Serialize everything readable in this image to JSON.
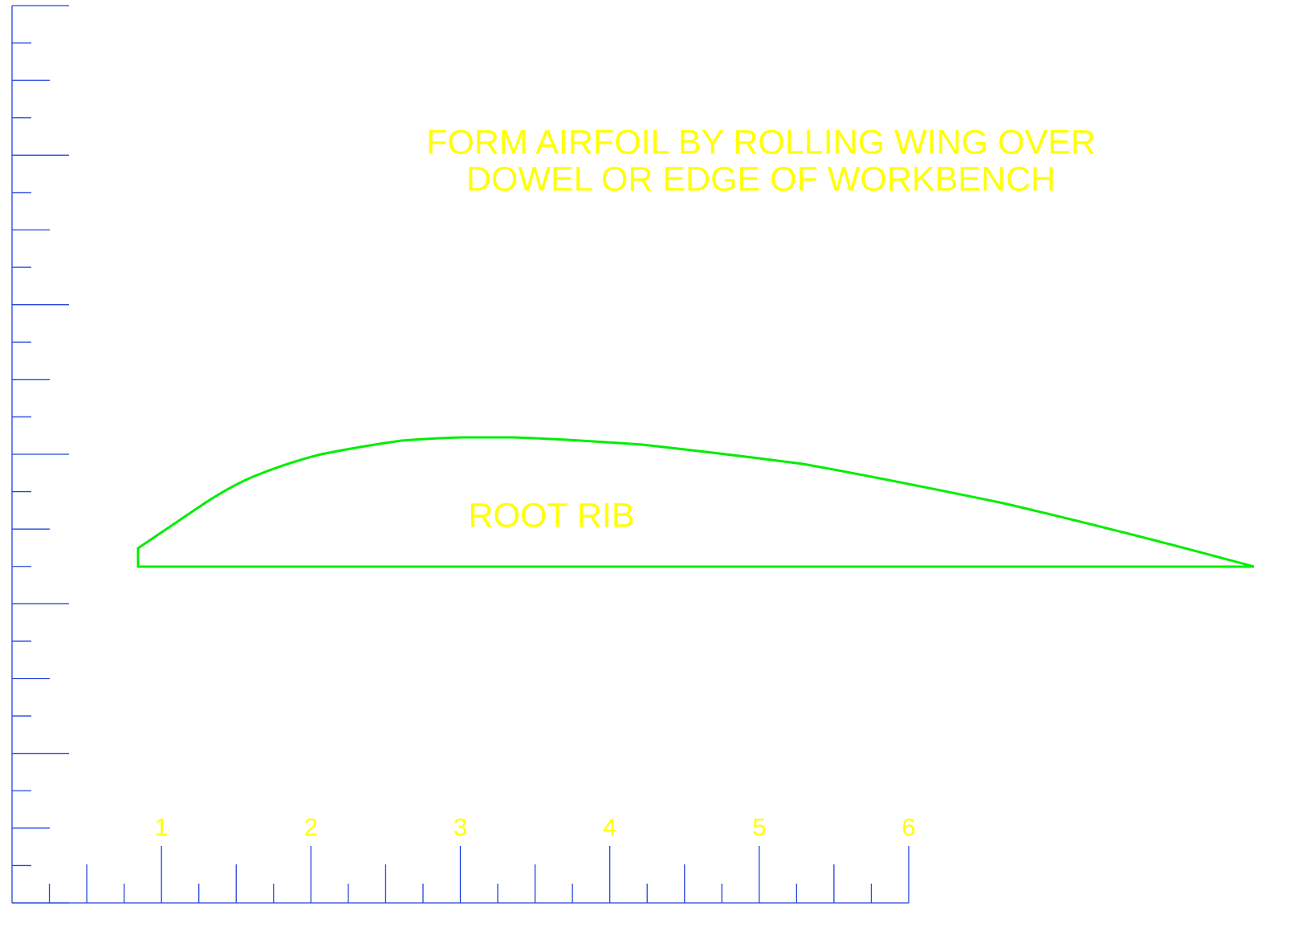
{
  "note": {
    "lines": [
      "FORM AIRFOIL BY ROLLING WING OVER",
      "DOWEL OR EDGE OF WORKBENCH"
    ]
  },
  "rib": {
    "label": "ROOT RIB"
  },
  "ruler": {
    "labels": [
      "1",
      "2",
      "3",
      "4",
      "5",
      "6"
    ]
  }
}
